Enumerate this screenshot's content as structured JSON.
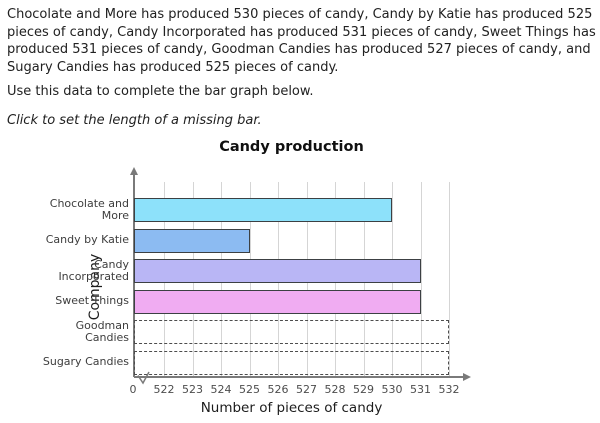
{
  "problem": {
    "statement": "Chocolate and More has produced 530 pieces of candy, Candy by Katie has produced 525 pieces of candy, Candy Incorporated has produced 531 pieces of candy, Sweet Things has produced 531 pieces of candy, Goodman Candies has produced 527 pieces of candy, and Sugary Candies has produced 525 pieces of candy.",
    "instruction": "Use this data to complete the bar graph below.",
    "hint": "Click to set the length of a missing bar."
  },
  "chart_data": {
    "type": "bar",
    "orientation": "horizontal",
    "title": "Candy production",
    "xlabel": "Number of pieces of candy",
    "ylabel": "Company",
    "categories": [
      "Chocolate and More",
      "Candy by Katie",
      "Candy Incorporated",
      "Sweet Things",
      "Goodman Candies",
      "Sugary Candies"
    ],
    "category_display": [
      "Chocolate and\nMore",
      "Candy by Katie",
      "Candy\nIncorporated",
      "Sweet Things",
      "Goodman\nCandies",
      "Sugary Candies"
    ],
    "values": [
      530,
      525,
      531,
      531,
      null,
      null
    ],
    "stated_values": [
      530,
      525,
      531,
      531,
      527,
      525
    ],
    "missing_categories": [
      "Goodman Candies",
      "Sugary Candies"
    ],
    "bar_colors": [
      "#8de1fa",
      "#8cbbf2",
      "#b9b6f5",
      "#f0acf2",
      null,
      null
    ],
    "bar_border_color": "#3c4043",
    "missing_border_color": "#4d4d4d",
    "axis": {
      "origin_label": "0",
      "tick_start": 522,
      "tick_end": 532,
      "tick_step": 1,
      "has_break": true
    },
    "x_tick_labels": [
      "0",
      "522",
      "523",
      "524",
      "525",
      "526",
      "527",
      "528",
      "529",
      "530",
      "531",
      "532"
    ],
    "grid": true,
    "legend": false,
    "grid_color": "#d5d5d5",
    "axis_color": "#7a7a7a"
  }
}
